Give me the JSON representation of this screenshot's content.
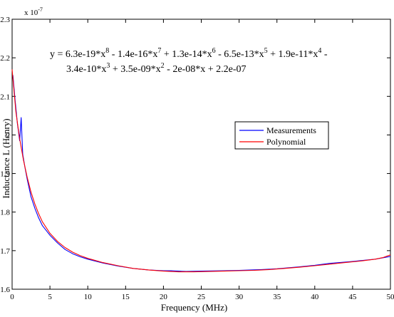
{
  "chart_data": {
    "type": "line",
    "title": "",
    "xlabel": "Frequency (MHz)",
    "ylabel": "Inductance L (Henry)",
    "y_exponent_label": "x 10",
    "y_exponent_power": "-7",
    "xlim": [
      0,
      50
    ],
    "ylim": [
      1.6,
      2.3
    ],
    "x_ticks": [
      "0",
      "5",
      "10",
      "15",
      "20",
      "25",
      "30",
      "35",
      "40",
      "45",
      "50"
    ],
    "y_ticks": [
      "1.6",
      "1.7",
      "1.8",
      "1.9",
      "2",
      "2.1",
      "2.2",
      "2.3"
    ],
    "grid": false,
    "legend_position": "right-middle",
    "equation": [
      [
        [
          "y = 6.3e-19*x",
          ""
        ],
        [
          "8",
          ""
        ],
        [
          " - 1.4e-16*x",
          ""
        ],
        [
          "7",
          "sup"
        ],
        [
          " + 1.3e-14*x",
          ""
        ],
        [
          "6",
          "sup"
        ],
        [
          " - 6.5e-13*x",
          ""
        ],
        [
          "5",
          "sup"
        ],
        [
          " + 1.9e-11*x",
          ""
        ],
        [
          "4",
          "sup"
        ],
        [
          " -",
          ""
        ]
      ],
      [
        [
          "3.4e-10*x",
          ""
        ],
        [
          "3",
          "sup"
        ],
        [
          " + 3.5e-09*x",
          ""
        ],
        [
          "2",
          "sup"
        ],
        [
          " - 2e-08*x + 2.2e-07",
          ""
        ]
      ]
    ],
    "series": [
      {
        "name": "Measurements",
        "color": "#0000ff",
        "x": [
          0.1,
          0.4,
          0.7,
          1.0,
          1.2,
          1.4,
          1.7,
          2.0,
          2.5,
          3.0,
          3.5,
          4.0,
          5.0,
          6.0,
          7.0,
          8.0,
          9.0,
          10.0,
          12.0,
          14.0,
          16.0,
          18.0,
          20.0,
          21.0,
          22.0,
          23.0,
          25.0,
          28.0,
          30.0,
          33.0,
          35.0,
          38.0,
          40.0,
          42.0,
          45.0,
          48.0,
          50.0
        ],
        "y": [
          2.155,
          2.09,
          2.03,
          1.985,
          2.045,
          1.95,
          1.915,
          1.885,
          1.84,
          1.81,
          1.785,
          1.765,
          1.74,
          1.72,
          1.703,
          1.692,
          1.684,
          1.678,
          1.668,
          1.66,
          1.654,
          1.65,
          1.648,
          1.648,
          1.647,
          1.646,
          1.647,
          1.648,
          1.649,
          1.651,
          1.653,
          1.658,
          1.662,
          1.667,
          1.672,
          1.678,
          1.685
        ]
      },
      {
        "name": "Polynomial",
        "color": "#ff0000",
        "x": [
          0.0,
          0.5,
          1.0,
          1.5,
          2.0,
          2.5,
          3.0,
          3.5,
          4.0,
          5.0,
          6.0,
          7.0,
          8.0,
          9.0,
          10.0,
          12.0,
          14.0,
          16.0,
          18.0,
          20.0,
          22.0,
          24.0,
          26.0,
          28.0,
          30.0,
          32.0,
          34.0,
          36.0,
          38.0,
          40.0,
          42.0,
          44.0,
          46.0,
          48.0,
          49.0,
          50.0
        ],
        "y": [
          2.17,
          2.06,
          1.99,
          1.935,
          1.89,
          1.852,
          1.821,
          1.796,
          1.775,
          1.745,
          1.724,
          1.708,
          1.696,
          1.687,
          1.68,
          1.669,
          1.661,
          1.654,
          1.65,
          1.647,
          1.645,
          1.645,
          1.646,
          1.647,
          1.648,
          1.649,
          1.651,
          1.654,
          1.657,
          1.661,
          1.665,
          1.669,
          1.673,
          1.678,
          1.682,
          1.689
        ]
      }
    ]
  }
}
